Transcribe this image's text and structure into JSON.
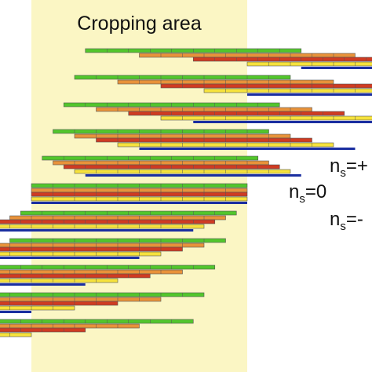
{
  "crop_label": "Cropping area",
  "ns_labels": [
    {
      "base": "n",
      "sub": "s",
      "rest": "=+"
    },
    {
      "base": "n",
      "sub": "s",
      "rest": "=0"
    },
    {
      "base": "n",
      "sub": "s",
      "rest": "=-"
    }
  ],
  "colors": {
    "crop_area": "#fbf6c4",
    "green": "#52c62c",
    "orange": "#e8923a",
    "red": "#cf3b22",
    "yellow": "#f6e23c",
    "blue": "#1a2ea0",
    "outline": "#555555"
  },
  "segments_per_bar": 10
}
